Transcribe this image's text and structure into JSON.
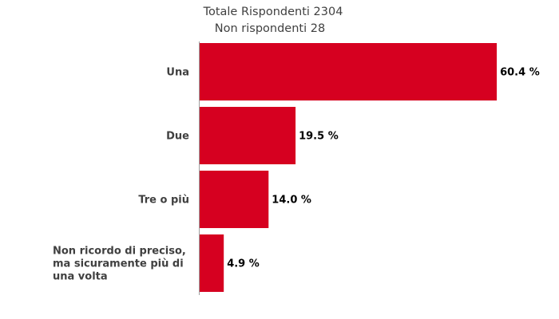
{
  "chart_data": {
    "type": "bar",
    "orientation": "horizontal",
    "title": "Totale Rispondenti 2304",
    "subtitle": "Non rispondenti 28",
    "categories": [
      [
        "Una"
      ],
      [
        "Due"
      ],
      [
        "Tre o più"
      ],
      [
        "Non ricordo di preciso,",
        "ma sicuramente più di",
        "una volta"
      ]
    ],
    "values": [
      60.4,
      19.5,
      14.0,
      4.9
    ],
    "value_labels": [
      "60.4 %",
      "19.5 %",
      "14.0 %",
      "4.9 %"
    ],
    "unit": "%",
    "xlim": [
      0,
      62
    ],
    "grid": false,
    "legend": "none",
    "bar_color": "#d60020",
    "axis_color": "#a0a0a0"
  }
}
